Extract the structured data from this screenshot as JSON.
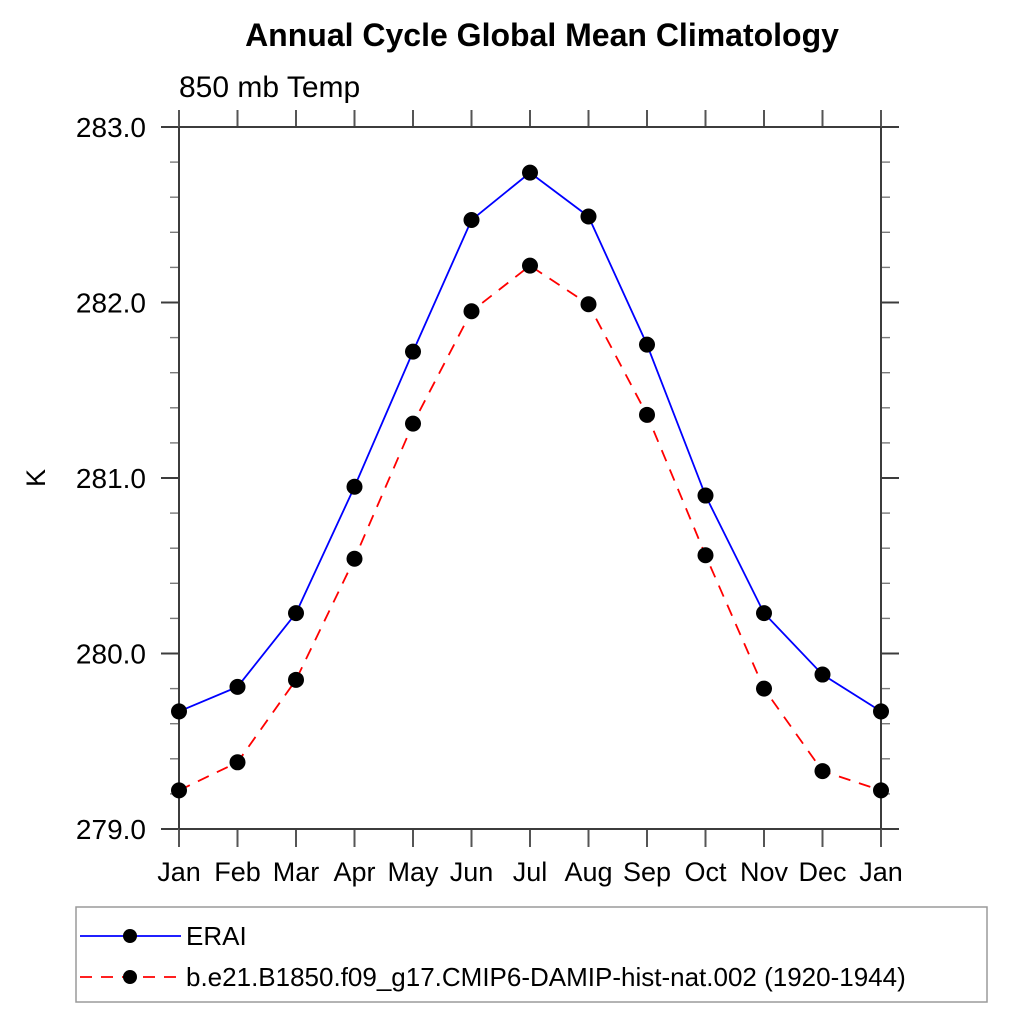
{
  "page": {
    "background": "#ffffff"
  },
  "chart_data": {
    "type": "line",
    "title": "Annual Cycle Global Mean Climatology",
    "subtitle": "850 mb Temp",
    "ylabel": "K",
    "xlabel": "",
    "categories": [
      "Jan",
      "Feb",
      "Mar",
      "Apr",
      "May",
      "Jun",
      "Jul",
      "Aug",
      "Sep",
      "Oct",
      "Nov",
      "Dec",
      "Jan"
    ],
    "series": [
      {
        "name": "ERAI",
        "color": "#0000ff",
        "line_style": "solid",
        "marker": "filled-circle",
        "marker_color": "#000000",
        "values": [
          279.67,
          279.81,
          280.23,
          280.95,
          281.72,
          282.47,
          282.74,
          282.49,
          281.76,
          280.9,
          280.23,
          279.88,
          279.67
        ]
      },
      {
        "name": "b.e21.B1850.f09_g17.CMIP6-DAMIP-hist-nat.002 (1920-1944)",
        "color": "#ff0000",
        "line_style": "dashed",
        "marker": "filled-circle",
        "marker_color": "#000000",
        "values": [
          279.22,
          279.38,
          279.85,
          280.54,
          281.31,
          281.95,
          282.21,
          281.99,
          281.36,
          280.56,
          279.8,
          279.33,
          279.22
        ]
      }
    ],
    "ylim": [
      279.0,
      283.0
    ],
    "y_major_ticks": [
      279.0,
      280.0,
      281.0,
      282.0,
      283.0
    ],
    "y_major_tick_labels": [
      "279.0",
      "280.0",
      "281.0",
      "282.0",
      "283.0"
    ],
    "y_minor_step": 0.2,
    "grid": false,
    "legend_position": "bottom-left",
    "axis_color": "#3c3c3c",
    "minor_tick_color": "#7a7a7a",
    "month_tick_color": "#555555",
    "legend_border_color": "#9a9a9a"
  }
}
